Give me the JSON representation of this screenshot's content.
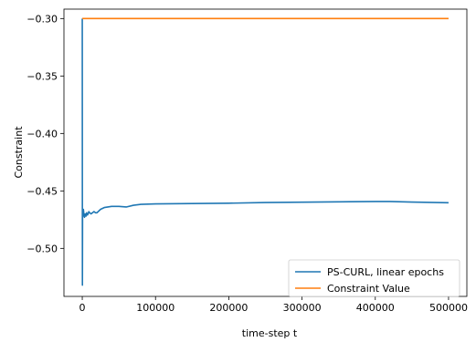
{
  "chart_data": {
    "type": "line",
    "xlabel": "time-step t",
    "ylabel": "Constraint",
    "xlim": [
      -25000,
      525000
    ],
    "ylim": [
      -0.5418,
      -0.2918
    ],
    "xticks": [
      0,
      100000,
      200000,
      300000,
      400000,
      500000
    ],
    "xtick_labels": [
      "0",
      "100000",
      "200000",
      "300000",
      "400000",
      "500000"
    ],
    "yticks": [
      -0.5,
      -0.45,
      -0.4,
      -0.35,
      -0.3
    ],
    "ytick_labels": [
      "−0.50",
      "−0.45",
      "−0.40",
      "−0.35",
      "−0.30"
    ],
    "grid": false,
    "legend_position": "lower right",
    "series": [
      {
        "name": "PS-CURL, linear epochs",
        "color": "#1f77b4",
        "x": [
          0,
          200,
          400,
          700,
          1000,
          1500,
          2000,
          3000,
          4000,
          5000,
          6000,
          7000,
          8000,
          9000,
          10000,
          12000,
          14000,
          16000,
          18000,
          20000,
          25000,
          30000,
          40000,
          50000,
          60000,
          70000,
          80000,
          100000,
          150000,
          200000,
          250000,
          300000,
          350000,
          400000,
          420000,
          450000,
          500000
        ],
        "y": [
          -0.3,
          -0.532,
          -0.47,
          -0.468,
          -0.472,
          -0.466,
          -0.469,
          -0.473,
          -0.47,
          -0.472,
          -0.469,
          -0.471,
          -0.47,
          -0.468,
          -0.469,
          -0.47,
          -0.469,
          -0.468,
          -0.469,
          -0.469,
          -0.466,
          -0.4645,
          -0.4635,
          -0.4635,
          -0.464,
          -0.4625,
          -0.4617,
          -0.4613,
          -0.461,
          -0.4607,
          -0.4601,
          -0.4598,
          -0.4595,
          -0.4592,
          -0.4592,
          -0.4597,
          -0.4603
        ]
      },
      {
        "name": "Constraint Value",
        "color": "#ff7f0e",
        "x": [
          0,
          500000
        ],
        "y": [
          -0.3,
          -0.3
        ]
      }
    ]
  }
}
